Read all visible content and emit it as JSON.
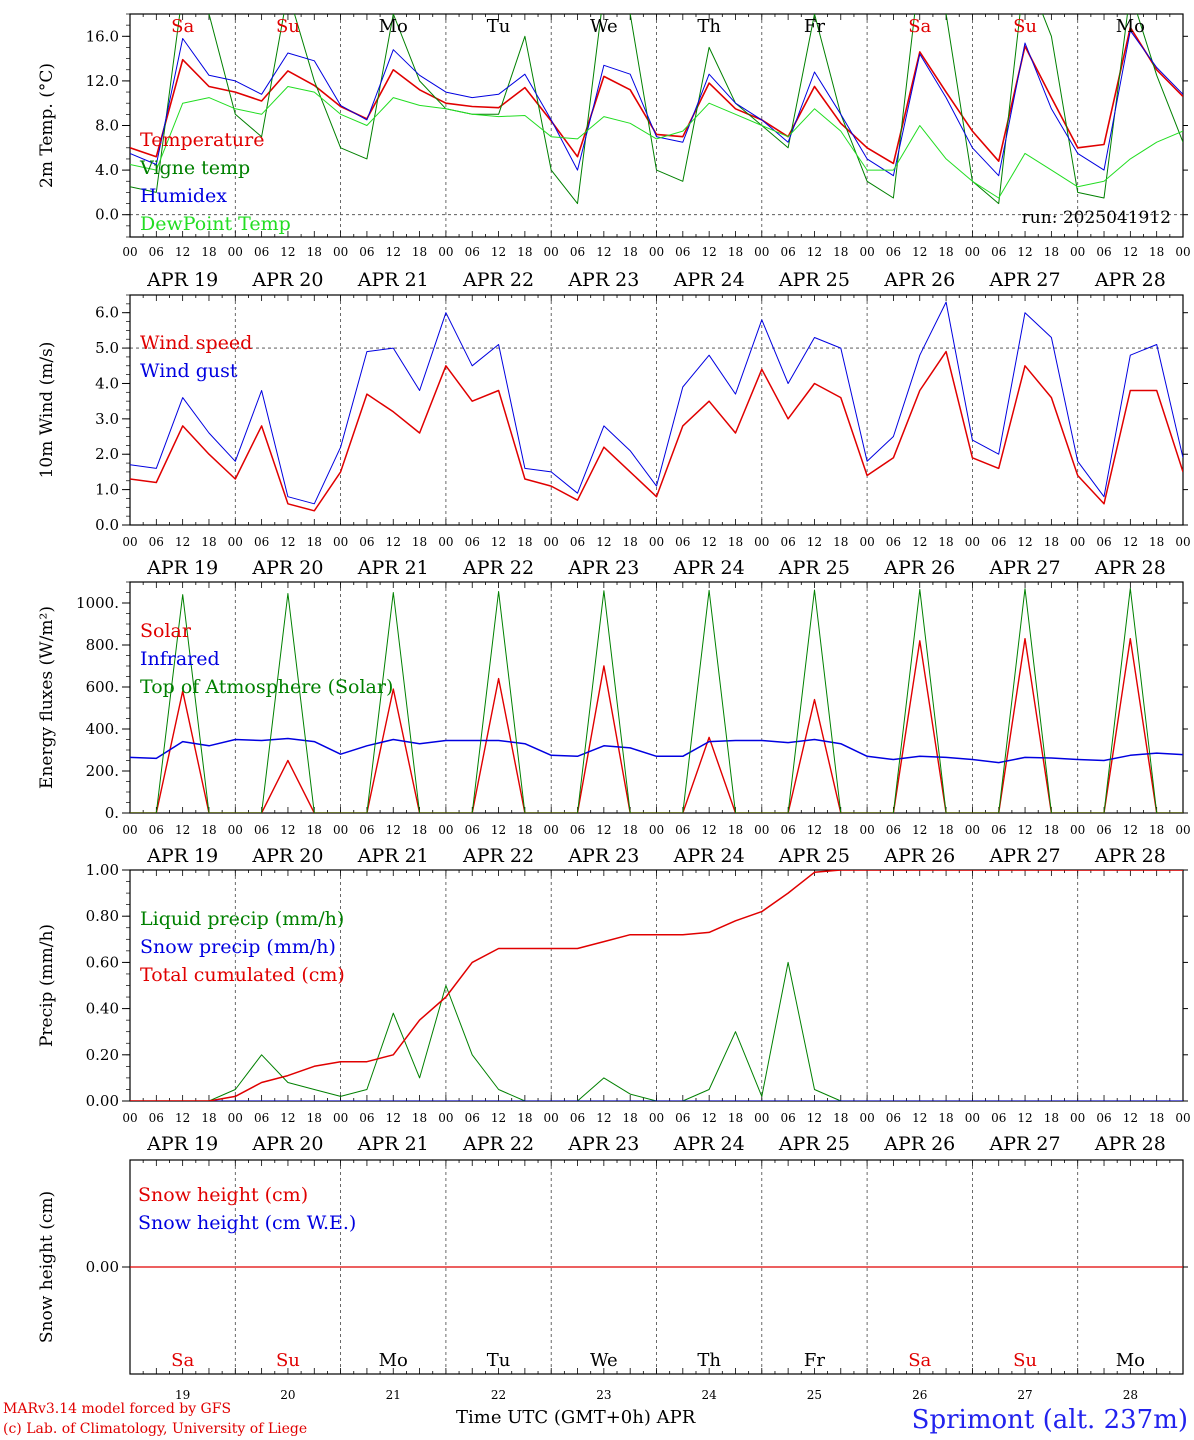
{
  "colors": {
    "red": "#e00000",
    "green": "#008000",
    "blue": "#0000e0",
    "lightgreen": "#22dd22",
    "axis": "#000000",
    "grid": "#444444"
  },
  "days": [
    {
      "abbr": "Sa",
      "num": "19",
      "date": "APR 19",
      "color": "red"
    },
    {
      "abbr": "Su",
      "num": "20",
      "date": "APR 20",
      "color": "red"
    },
    {
      "abbr": "Mo",
      "num": "21",
      "date": "APR 21",
      "color": "black"
    },
    {
      "abbr": "Tu",
      "num": "22",
      "date": "APR 22",
      "color": "black"
    },
    {
      "abbr": "We",
      "num": "23",
      "date": "APR 23",
      "color": "black"
    },
    {
      "abbr": "Th",
      "num": "24",
      "date": "APR 24",
      "color": "black"
    },
    {
      "abbr": "Fr",
      "num": "25",
      "date": "APR 25",
      "color": "black"
    },
    {
      "abbr": "Sa",
      "num": "26",
      "date": "APR 26",
      "color": "red"
    },
    {
      "abbr": "Su",
      "num": "27",
      "date": "APR 27",
      "color": "red"
    },
    {
      "abbr": "Mo",
      "num": "28",
      "date": "APR 28",
      "color": "black"
    }
  ],
  "hour_labels": [
    "00",
    "06",
    "12",
    "18"
  ],
  "hour_label_end": "00",
  "footer": {
    "credit1": "MARv3.14 model forced by GFS",
    "credit2": "(c) Lab. of Climatology, University of Liege",
    "xlabel": "Time UTC (GMT+0h) APR",
    "station": "Sprimont (alt. 237m)"
  },
  "chart_data": [
    {
      "type": "line",
      "ylabel": "2m Temp. (°C)",
      "ylim": [
        -2.0,
        18.0
      ],
      "yticks": [
        "0.0",
        "4.0",
        "8.0",
        "12.0",
        "16.0"
      ],
      "ytick_values": [
        0,
        4,
        8,
        12,
        16
      ],
      "ref_line": 0,
      "annotation": "run: 2025041912",
      "x_hours": [
        0,
        6,
        12,
        18,
        24,
        30,
        36,
        42,
        48,
        54,
        60,
        66,
        72,
        78,
        84,
        90,
        96,
        102,
        108,
        114,
        120,
        126,
        132,
        138,
        144,
        150,
        156,
        162,
        168,
        174,
        180,
        186,
        192,
        198,
        204,
        210,
        216,
        222,
        228,
        234,
        240
      ],
      "series": [
        {
          "name": "Temperature",
          "color": "red",
          "width": 1.6,
          "values": [
            6.0,
            5.2,
            13.9,
            11.5,
            11.0,
            10.2,
            12.9,
            11.6,
            9.7,
            8.6,
            13.0,
            11.2,
            10.0,
            9.7,
            9.6,
            11.4,
            8.4,
            5.2,
            12.4,
            11.2,
            7.2,
            7.0,
            11.8,
            9.5,
            8.5,
            7.0,
            11.5,
            8.2,
            6.0,
            4.6,
            14.6,
            11.0,
            7.5,
            4.8,
            15.1,
            10.5,
            6.0,
            6.3,
            16.8,
            13.0,
            10.6
          ]
        },
        {
          "name": "Vigne temp",
          "color": "green",
          "width": 1,
          "values": [
            2.5,
            2.0,
            20.0,
            18.0,
            9.0,
            7.0,
            20.0,
            12.0,
            6.0,
            5.0,
            18.0,
            12.0,
            9.5,
            9.0,
            9.0,
            16.0,
            4.0,
            1.0,
            20.0,
            18.0,
            4.0,
            3.0,
            15.0,
            10.0,
            8.0,
            6.0,
            18.0,
            9.0,
            3.0,
            1.5,
            22.0,
            18.0,
            3.0,
            1.0,
            22.0,
            16.0,
            2.0,
            1.5,
            20.0,
            12.5,
            6.5
          ]
        },
        {
          "name": "Humidex",
          "color": "blue",
          "width": 1,
          "values": [
            5.5,
            4.5,
            15.8,
            12.5,
            12.0,
            10.8,
            14.5,
            13.8,
            9.8,
            8.5,
            14.8,
            12.5,
            11.0,
            10.5,
            10.8,
            12.6,
            8.5,
            4.0,
            13.4,
            12.6,
            7.0,
            6.5,
            12.6,
            10.0,
            8.5,
            6.5,
            12.8,
            9.0,
            5.0,
            3.5,
            14.4,
            10.5,
            6.0,
            3.5,
            15.4,
            9.5,
            5.5,
            4.0,
            16.5,
            13.2,
            10.8
          ]
        },
        {
          "name": "DewPoint Temp",
          "color": "lightgreen",
          "width": 1,
          "values": [
            4.5,
            4.0,
            10.0,
            10.5,
            9.5,
            9.0,
            11.5,
            11.0,
            9.0,
            8.0,
            10.5,
            9.8,
            9.5,
            9.0,
            8.8,
            8.9,
            7.0,
            6.8,
            8.8,
            8.2,
            6.8,
            7.5,
            10.0,
            9.0,
            8.0,
            7.0,
            9.5,
            7.5,
            4.0,
            4.0,
            8.0,
            5.0,
            3.0,
            1.5,
            5.5,
            4.0,
            2.5,
            3.0,
            5.0,
            6.5,
            7.5
          ]
        }
      ]
    },
    {
      "type": "line",
      "ylabel": "10m Wind (m/s)",
      "ylim": [
        0.0,
        6.5
      ],
      "yticks": [
        "0.0",
        "1.0",
        "2.0",
        "3.0",
        "4.0",
        "5.0",
        "6.0"
      ],
      "ytick_values": [
        0,
        1,
        2,
        3,
        4,
        5,
        6
      ],
      "ref_line": 5,
      "x_hours": [
        0,
        6,
        12,
        18,
        24,
        30,
        36,
        42,
        48,
        54,
        60,
        66,
        72,
        78,
        84,
        90,
        96,
        102,
        108,
        114,
        120,
        126,
        132,
        138,
        144,
        150,
        156,
        162,
        168,
        174,
        180,
        186,
        192,
        198,
        204,
        210,
        216,
        222,
        228,
        234,
        240
      ],
      "series": [
        {
          "name": "Wind speed",
          "color": "red",
          "width": 1.5,
          "values": [
            1.3,
            1.2,
            2.8,
            2.0,
            1.3,
            2.8,
            0.6,
            0.4,
            1.5,
            3.7,
            3.2,
            2.6,
            4.5,
            3.5,
            3.8,
            1.3,
            1.1,
            0.7,
            2.2,
            1.5,
            0.8,
            2.8,
            3.5,
            2.6,
            4.4,
            3.0,
            4.0,
            3.6,
            1.4,
            1.9,
            3.8,
            4.9,
            1.9,
            1.6,
            4.5,
            3.6,
            1.4,
            0.6,
            3.8,
            3.8,
            1.5
          ]
        },
        {
          "name": "Wind gust",
          "color": "blue",
          "width": 1,
          "values": [
            1.7,
            1.6,
            3.6,
            2.6,
            1.8,
            3.8,
            0.8,
            0.6,
            2.2,
            4.9,
            5.0,
            3.8,
            6.0,
            4.5,
            5.1,
            1.6,
            1.5,
            0.9,
            2.8,
            2.1,
            1.1,
            3.9,
            4.8,
            3.7,
            5.8,
            4.0,
            5.3,
            5.0,
            1.8,
            2.5,
            4.8,
            6.3,
            2.4,
            2.0,
            6.0,
            5.3,
            1.8,
            0.8,
            4.8,
            5.1,
            1.9
          ]
        }
      ]
    },
    {
      "type": "line",
      "ylabel": "Energy fluxes (W/m²)",
      "ylim": [
        0,
        1100
      ],
      "yticks": [
        "0.",
        "200.",
        "400.",
        "600.",
        "800.",
        "1000."
      ],
      "ytick_values": [
        0,
        200,
        400,
        600,
        800,
        1000
      ],
      "x_hours": [
        0,
        6,
        12,
        18,
        24,
        30,
        36,
        42,
        48,
        54,
        60,
        66,
        72,
        78,
        84,
        90,
        96,
        102,
        108,
        114,
        120,
        126,
        132,
        138,
        144,
        150,
        156,
        162,
        168,
        174,
        180,
        186,
        192,
        198,
        204,
        210,
        216,
        222,
        228,
        234,
        240
      ],
      "series": [
        {
          "name": "Solar",
          "color": "red",
          "width": 1.4,
          "values": [
            0,
            0,
            580,
            0,
            0,
            0,
            250,
            0,
            0,
            0,
            590,
            0,
            0,
            0,
            640,
            0,
            0,
            0,
            700,
            0,
            0,
            0,
            360,
            0,
            0,
            0,
            540,
            0,
            0,
            0,
            820,
            0,
            0,
            0,
            830,
            0,
            0,
            0,
            830,
            0,
            0
          ]
        },
        {
          "name": "Infrared",
          "color": "blue",
          "width": 1.5,
          "values": [
            265,
            260,
            340,
            320,
            350,
            345,
            355,
            340,
            280,
            320,
            350,
            330,
            345,
            345,
            345,
            330,
            275,
            270,
            320,
            310,
            270,
            270,
            340,
            345,
            345,
            335,
            350,
            330,
            270,
            255,
            270,
            265,
            255,
            240,
            265,
            262,
            255,
            250,
            275,
            285,
            278
          ]
        },
        {
          "name": "Top of Atmosphere (Solar)",
          "color": "green",
          "width": 1,
          "values": [
            0,
            0,
            1040,
            0,
            0,
            0,
            1045,
            0,
            0,
            0,
            1050,
            0,
            0,
            0,
            1055,
            0,
            0,
            0,
            1058,
            0,
            0,
            0,
            1060,
            0,
            0,
            0,
            1062,
            0,
            0,
            0,
            1065,
            0,
            0,
            0,
            1068,
            0,
            0,
            0,
            1070,
            0,
            0
          ]
        }
      ]
    },
    {
      "type": "line",
      "ylabel": "Precip (mm/h)",
      "ylim": [
        0.0,
        1.0
      ],
      "yticks": [
        "0.00",
        "0.20",
        "0.40",
        "0.60",
        "0.80",
        "1.00"
      ],
      "ytick_values": [
        0,
        0.2,
        0.4,
        0.6,
        0.8,
        1.0
      ],
      "x_hours": [
        0,
        6,
        12,
        18,
        24,
        30,
        36,
        42,
        48,
        54,
        60,
        66,
        72,
        78,
        84,
        90,
        96,
        102,
        108,
        114,
        120,
        126,
        132,
        138,
        144,
        150,
        156,
        162,
        168,
        174,
        180,
        186,
        192,
        198,
        204,
        210,
        216,
        222,
        228,
        234,
        240
      ],
      "series": [
        {
          "name": "Liquid precip (mm/h)",
          "color": "green",
          "width": 1,
          "values": [
            0,
            0,
            0,
            0,
            0.05,
            0.2,
            0.08,
            0.05,
            0.02,
            0.05,
            0.38,
            0.1,
            0.5,
            0.2,
            0.05,
            0,
            0,
            0,
            0.1,
            0.03,
            0,
            0,
            0.05,
            0.3,
            0.02,
            0.6,
            0.05,
            0,
            0,
            0,
            0,
            0,
            0,
            0,
            0,
            0,
            0,
            0,
            0,
            0,
            0
          ]
        },
        {
          "name": "Snow precip (mm/h)",
          "color": "blue",
          "width": 1,
          "values": [
            0,
            0,
            0,
            0,
            0,
            0,
            0,
            0,
            0,
            0,
            0,
            0,
            0,
            0,
            0,
            0,
            0,
            0,
            0,
            0,
            0,
            0,
            0,
            0,
            0,
            0,
            0,
            0,
            0,
            0,
            0,
            0,
            0,
            0,
            0,
            0,
            0,
            0,
            0,
            0,
            0
          ]
        },
        {
          "name": "Total cumulated (cm)",
          "color": "red",
          "width": 1.5,
          "values": [
            0,
            0,
            0,
            0,
            0.02,
            0.08,
            0.11,
            0.15,
            0.17,
            0.17,
            0.2,
            0.35,
            0.45,
            0.6,
            0.66,
            0.66,
            0.66,
            0.66,
            0.69,
            0.72,
            0.72,
            0.72,
            0.73,
            0.78,
            0.82,
            0.9,
            0.99,
            1.0,
            1.0,
            1.0,
            1.0,
            1.0,
            1.0,
            1.0,
            1.0,
            1.0,
            1.0,
            1.0,
            1.0,
            1.0,
            1.0
          ]
        }
      ]
    },
    {
      "type": "line",
      "ylabel": "Snow height (cm)",
      "ylim": [
        -1.0,
        1.0
      ],
      "yticks": [
        "0.00"
      ],
      "ytick_values": [
        0
      ],
      "x_hours": [
        0,
        240
      ],
      "series": [
        {
          "name": "Snow height (cm)",
          "color": "red",
          "width": 1.2,
          "values": [
            0,
            0
          ]
        },
        {
          "name": "Snow height (cm W.E.)",
          "color": "blue",
          "width": 1,
          "values": [
            0,
            0
          ],
          "hidden_line": true
        }
      ]
    }
  ]
}
